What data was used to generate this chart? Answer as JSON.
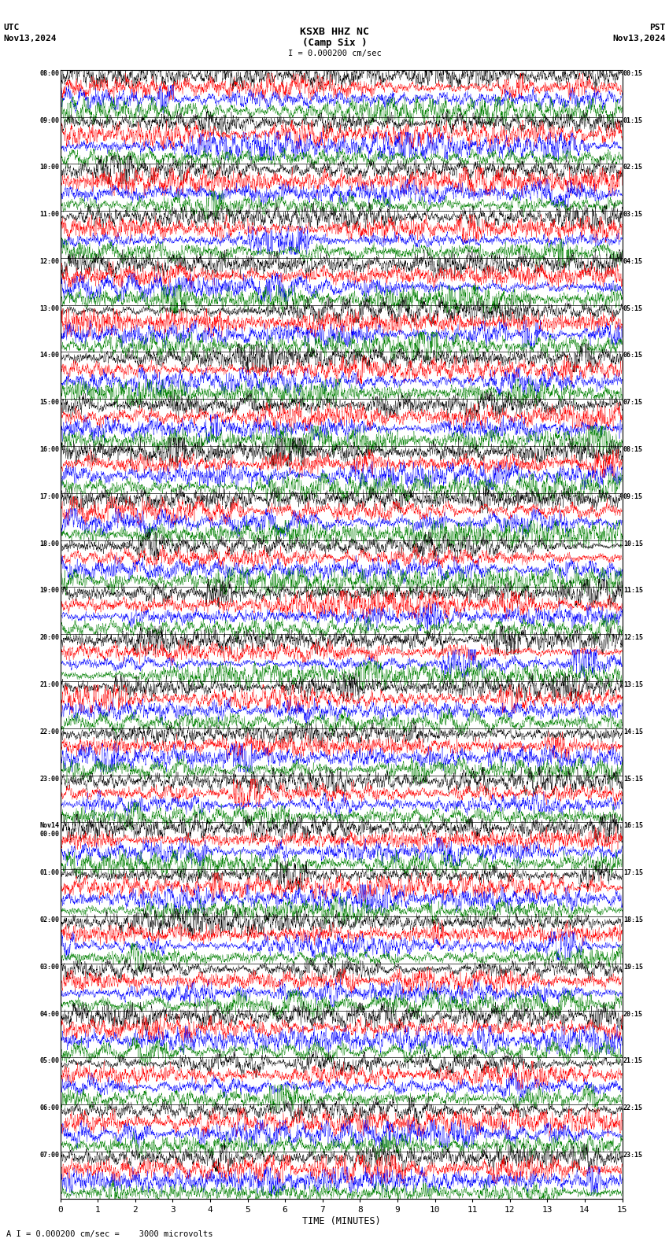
{
  "title_line1": "KSXB HHZ NC",
  "title_line2": "(Camp Six )",
  "scale_label": "I = 0.000200 cm/sec",
  "left_header_line1": "UTC",
  "left_header_line2": "Nov13,2024",
  "right_header_line1": "PST",
  "right_header_line2": "Nov13,2024",
  "bottom_label": "TIME (MINUTES)",
  "bottom_note": "A I = 0.000200 cm/sec =    3000 microvolts",
  "xlim": [
    0,
    15
  ],
  "figsize": [
    8.5,
    15.84
  ],
  "dpi": 100,
  "bg_color": "white",
  "trace_colors": [
    "black",
    "red",
    "blue",
    "green"
  ],
  "num_traces": 96,
  "traces_per_hour": 4,
  "amplitude_scale": 0.48,
  "noise_seed": 42,
  "x_ticks": [
    0,
    1,
    2,
    3,
    4,
    5,
    6,
    7,
    8,
    9,
    10,
    11,
    12,
    13,
    14,
    15
  ],
  "left_time_labels": {
    "0": "08:00",
    "4": "09:00",
    "8": "10:00",
    "12": "11:00",
    "16": "12:00",
    "20": "13:00",
    "24": "14:00",
    "28": "15:00",
    "32": "16:00",
    "36": "17:00",
    "40": "18:00",
    "44": "19:00",
    "48": "20:00",
    "52": "21:00",
    "56": "22:00",
    "60": "23:00",
    "64": "Nov14\n00:00",
    "68": "01:00",
    "72": "02:00",
    "76": "03:00",
    "80": "04:00",
    "84": "05:00",
    "88": "06:00",
    "92": "07:00"
  },
  "right_time_labels": {
    "0": "00:15",
    "4": "01:15",
    "8": "02:15",
    "12": "03:15",
    "16": "04:15",
    "20": "05:15",
    "24": "06:15",
    "28": "07:15",
    "32": "08:15",
    "36": "09:15",
    "40": "10:15",
    "44": "11:15",
    "48": "12:15",
    "52": "13:15",
    "56": "14:15",
    "60": "15:15",
    "64": "16:15",
    "68": "17:15",
    "72": "18:15",
    "76": "19:15",
    "80": "20:15",
    "84": "21:15",
    "88": "22:15",
    "92": "23:15"
  }
}
